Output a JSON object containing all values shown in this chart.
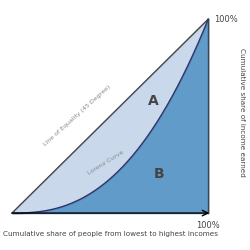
{
  "xlabel": "Cumulative share of people from lowest to highest incomes",
  "ylabel": "Cumulative share of income earned",
  "x_tick_label": "100%",
  "y_tick_label": "100%",
  "label_A": "A",
  "label_B": "B",
  "line_of_equality_label": "Line of Equality (45 Degree)",
  "lorenz_curve_label": "Lorenz Curve",
  "area_A_color": "#b8cce4",
  "area_B_color": "#4f90c4",
  "area_A_alpha": 0.75,
  "area_B_alpha": 0.9,
  "line_color": "#444444",
  "lorenz_line_color": "#333366",
  "background_color": "#ffffff",
  "label_color": "#444444",
  "text_color": "#888888",
  "figsize": [
    2.5,
    2.5
  ],
  "dpi": 100,
  "lorenz_power": 2.5
}
